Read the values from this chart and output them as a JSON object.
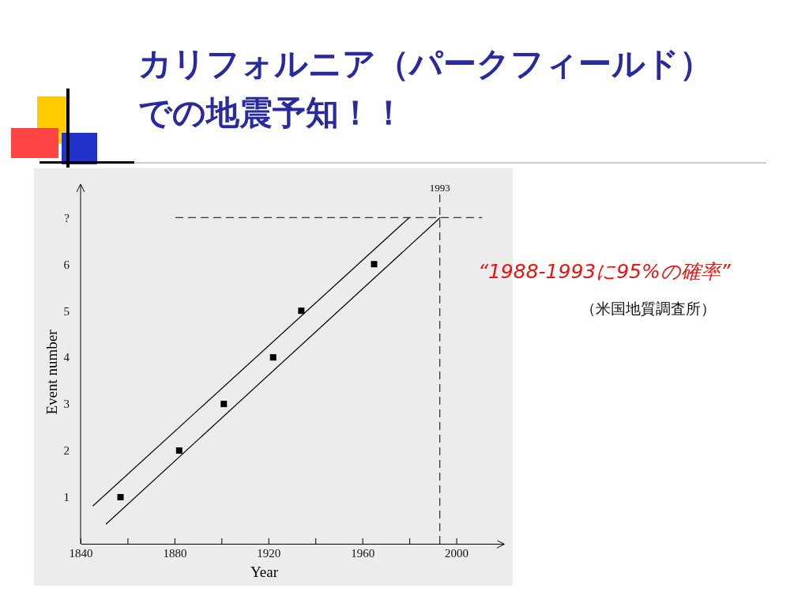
{
  "chart_data": {
    "type": "scatter",
    "title": "カリフォルニア（パークフィールド）での地震予知！！",
    "xlabel": "Year",
    "ylabel": "Event number",
    "xlim": [
      1840,
      2020
    ],
    "xticks": [
      1840,
      {
        "value": 1860,
        "label": null
      },
      1880,
      {
        "value": 1900,
        "label": null
      },
      1920,
      {
        "value": 1940,
        "label": null
      },
      1960,
      {
        "value": 1980,
        "label": null
      },
      2000
    ],
    "ylim": [
      0,
      7.7
    ],
    "yticks": [
      1,
      2,
      3,
      4,
      5,
      6,
      {
        "value": 7,
        "label": "?"
      }
    ],
    "grid": false,
    "series": [
      {
        "marker": "square",
        "color": "#000000",
        "x": [
          1857,
          1882,
          1901,
          1922,
          1934,
          1965
        ],
        "values": [
          1,
          2,
          3,
          4,
          5,
          6
        ]
      },
      {
        "type": "line",
        "marker": "none",
        "line_style": "solid",
        "color": "#000000",
        "x": [
          1845.2,
          1980
        ],
        "values": [
          0.81,
          7.0
        ]
      },
      {
        "type": "line",
        "marker": "none",
        "line_style": "solid",
        "color": "#000000",
        "x": [
          1850.8,
          1993.2
        ],
        "values": [
          0.42,
          7.0
        ]
      },
      {
        "type": "line",
        "marker": "none",
        "line_style": "dashed",
        "color": "#000000",
        "x": [
          1880.4,
          2011
        ],
        "values": [
          7,
          7
        ]
      }
    ],
    "ref_lines": [
      {
        "axis": "x",
        "value": 1993,
        "label": "1993",
        "line_style": "dashed",
        "color": "#000000"
      }
    ],
    "annotations": [
      "“1988-1993に95%の確率”",
      "（米国地質調査所）"
    ]
  }
}
